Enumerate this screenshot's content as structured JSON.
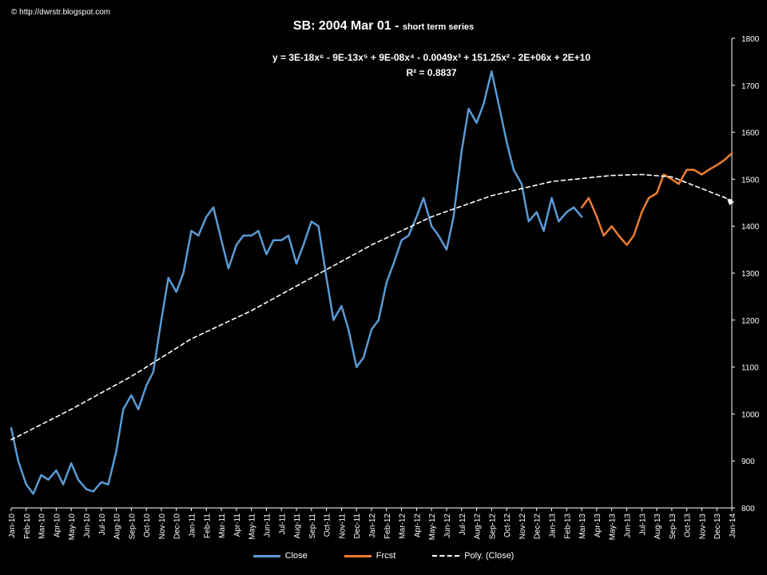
{
  "header": {
    "copyright": "© http://dwrstr.blogspot.com",
    "title": "SB:   2004  Mar 01  - ",
    "subtitle": "short term series",
    "equation": "y = 3E-18x⁶ - 9E-13x⁵ + 9E-08x⁴ - 0.0049x³ + 151.25x² - 2E+06x + 2E+10",
    "r_squared": "R² = 0.8837"
  },
  "legend": {
    "close": "Close",
    "forecast": "Frcst",
    "poly": "Poly. (Close)"
  },
  "colors": {
    "close": "#5b9bd5",
    "forecast": "#ed7d31",
    "poly": "#ffffff",
    "background": "#000000",
    "axis": "#ffffff"
  },
  "chart_data": {
    "type": "line",
    "xlim": [
      "2010-01",
      "2014-01"
    ],
    "ylim": [
      800,
      1800
    ],
    "y_ticks": [
      800,
      900,
      1000,
      1100,
      1200,
      1300,
      1400,
      1500,
      1600,
      1700,
      1800
    ],
    "x_ticks": [
      "Jan-10",
      "Feb-10",
      "Mar-10",
      "Apr-10",
      "May-10",
      "Jun-10",
      "Jul-10",
      "Aug-10",
      "Sep-10",
      "Oct-10",
      "Nov-10",
      "Dec-10",
      "Jan-11",
      "Feb-11",
      "Mar-11",
      "Apr-11",
      "May-11",
      "Jun-11",
      "Jul-11",
      "Aug-11",
      "Sep-11",
      "Oct-11",
      "Nov-11",
      "Dec-11",
      "Jan-12",
      "Feb-12",
      "Mar-12",
      "Apr-12",
      "May-12",
      "Jun-12",
      "Jul-12",
      "Aug-12",
      "Sep-12",
      "Oct-12",
      "Nov-12",
      "Dec-12",
      "Jan-13",
      "Feb-13",
      "Mar-13",
      "Apr-13",
      "May-13",
      "Jun-13",
      "Jul-13",
      "Aug-13",
      "Sep-13",
      "Oct-13",
      "Nov-13",
      "Dec-13",
      "Jan-14"
    ],
    "grid": false,
    "legend_position": "bottom",
    "series": [
      {
        "name": "Close",
        "x": [
          "2010-01",
          "2010-01-15",
          "2010-02",
          "2010-02-15",
          "2010-03",
          "2010-03-15",
          "2010-04",
          "2010-04-15",
          "2010-05",
          "2010-05-15",
          "2010-06",
          "2010-06-15",
          "2010-07",
          "2010-07-15",
          "2010-08",
          "2010-08-15",
          "2010-09",
          "2010-09-15",
          "2010-10",
          "2010-10-15",
          "2010-11",
          "2010-11-15",
          "2010-12",
          "2010-12-15",
          "2011-01",
          "2011-01-15",
          "2011-02",
          "2011-02-15",
          "2011-03",
          "2011-03-15",
          "2011-04",
          "2011-04-15",
          "2011-05",
          "2011-05-15",
          "2011-06",
          "2011-06-15",
          "2011-07",
          "2011-07-15",
          "2011-08",
          "2011-08-15",
          "2011-09",
          "2011-09-15",
          "2011-10",
          "2011-10-15",
          "2011-11",
          "2011-11-15",
          "2011-12",
          "2011-12-15",
          "2012-01",
          "2012-01-15",
          "2012-02",
          "2012-02-15",
          "2012-03",
          "2012-03-15",
          "2012-04",
          "2012-04-15",
          "2012-05",
          "2012-05-15",
          "2012-06",
          "2012-06-15",
          "2012-07",
          "2012-07-15",
          "2012-08",
          "2012-08-15",
          "2012-09",
          "2012-09-15",
          "2012-10",
          "2012-10-15",
          "2012-11",
          "2012-11-15",
          "2012-12",
          "2012-12-15",
          "2013-01",
          "2013-01-15",
          "2013-02",
          "2013-02-15",
          "2013-03"
        ],
        "values": [
          970,
          900,
          850,
          830,
          870,
          860,
          880,
          850,
          895,
          860,
          840,
          835,
          855,
          850,
          920,
          1010,
          1040,
          1010,
          1060,
          1090,
          1200,
          1290,
          1260,
          1300,
          1390,
          1380,
          1420,
          1440,
          1370,
          1310,
          1360,
          1380,
          1380,
          1390,
          1340,
          1370,
          1370,
          1380,
          1320,
          1360,
          1410,
          1400,
          1290,
          1200,
          1230,
          1180,
          1100,
          1120,
          1180,
          1200,
          1280,
          1320,
          1370,
          1380,
          1420,
          1460,
          1400,
          1380,
          1350,
          1420,
          1560,
          1650,
          1620,
          1660,
          1730,
          1660,
          1580,
          1520,
          1490,
          1410,
          1430,
          1390,
          1460,
          1410,
          1430,
          1440,
          1420
        ]
      },
      {
        "name": "Frcst",
        "x": [
          "2013-03",
          "2013-03-15",
          "2013-04",
          "2013-04-15",
          "2013-05",
          "2013-05-15",
          "2013-06",
          "2013-06-15",
          "2013-07",
          "2013-07-15",
          "2013-08",
          "2013-08-15",
          "2013-09",
          "2013-09-15",
          "2013-10",
          "2013-10-15",
          "2013-11",
          "2013-11-15",
          "2013-12",
          "2013-12-15",
          "2014-01"
        ],
        "values": [
          1440,
          1460,
          1420,
          1380,
          1400,
          1380,
          1360,
          1380,
          1430,
          1460,
          1470,
          1510,
          1500,
          1490,
          1520,
          1520,
          1510,
          1520,
          1530,
          1540,
          1555
        ]
      },
      {
        "name": "Poly. (Close)",
        "x": [
          "2010-01",
          "2010-05",
          "2010-09",
          "2011-01",
          "2011-05",
          "2011-09",
          "2012-01",
          "2012-05",
          "2012-09",
          "2013-01",
          "2013-05",
          "2013-07",
          "2013-09",
          "2014-01"
        ],
        "values": [
          945,
          1010,
          1080,
          1160,
          1220,
          1290,
          1360,
          1420,
          1465,
          1495,
          1508,
          1510,
          1505,
          1455
        ]
      }
    ]
  }
}
